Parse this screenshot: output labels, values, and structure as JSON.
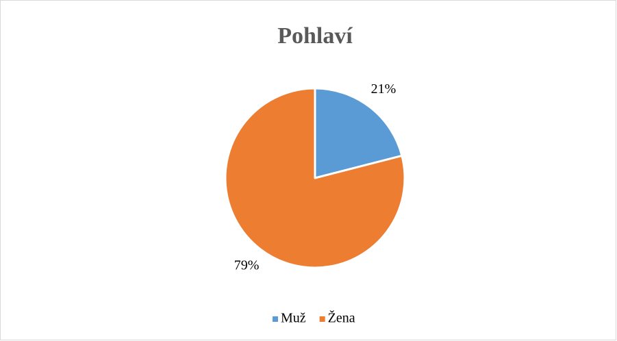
{
  "chart_data": {
    "type": "pie",
    "title": "Pohlaví",
    "categories": [
      "Muž",
      "Žena"
    ],
    "values": [
      21,
      79
    ],
    "value_labels": [
      "21%",
      "79%"
    ],
    "colors": [
      "#5b9bd5",
      "#ed7d31"
    ],
    "legend": "bottom"
  }
}
